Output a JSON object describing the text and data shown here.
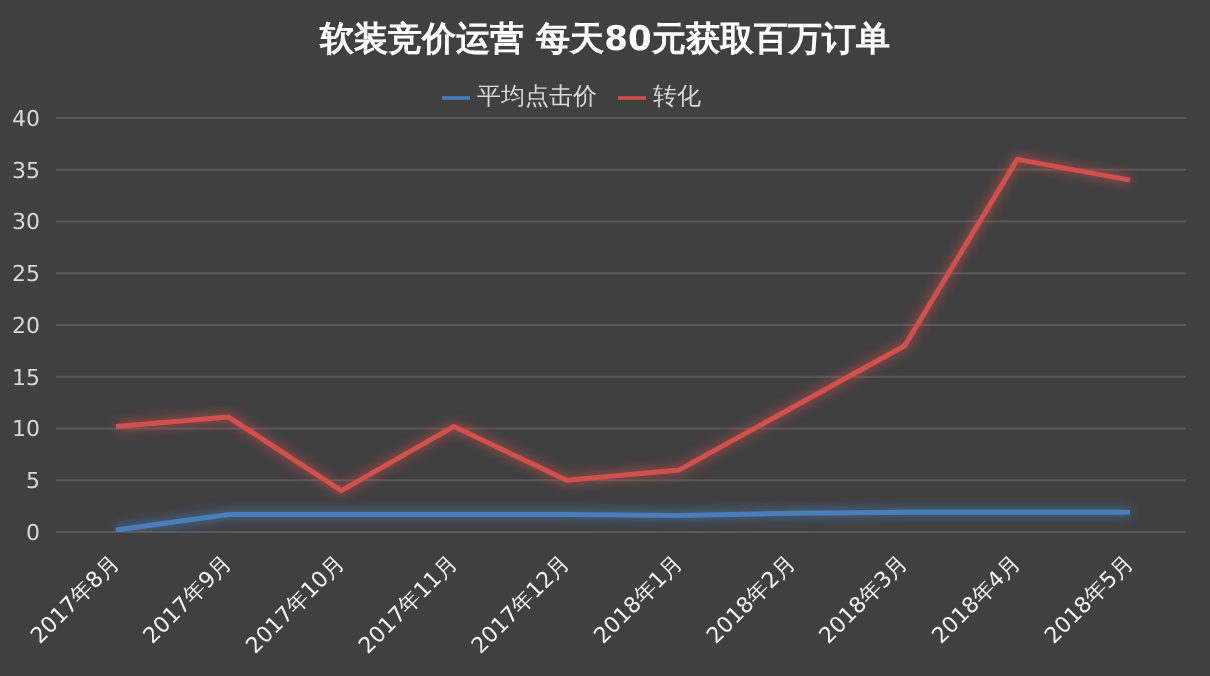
{
  "chart_data": {
    "type": "line",
    "title": "软装竞价运营 每天80元获取百万订单",
    "categories": [
      "2017年8月",
      "2017年9月",
      "2017年10月",
      "2017年11月",
      "2017年12月",
      "2018年1月",
      "2018年2月",
      "2018年3月",
      "2018年4月",
      "2018年5月"
    ],
    "series": [
      {
        "name": "平均点击价",
        "color": "#4a7ebb",
        "values": [
          0.2,
          1.7,
          1.7,
          1.7,
          1.7,
          1.6,
          1.8,
          1.9,
          1.9,
          1.9
        ]
      },
      {
        "name": "转化",
        "color": "#d0504c",
        "values": [
          10.2,
          11.1,
          4,
          10.2,
          5,
          6,
          12,
          18,
          36,
          34
        ]
      }
    ],
    "ylim": [
      0,
      40
    ],
    "yticks": [
      0,
      5,
      10,
      15,
      20,
      25,
      30,
      35,
      40
    ],
    "grid": "y",
    "legend": "top",
    "marker": "none",
    "line_style": "solid"
  }
}
